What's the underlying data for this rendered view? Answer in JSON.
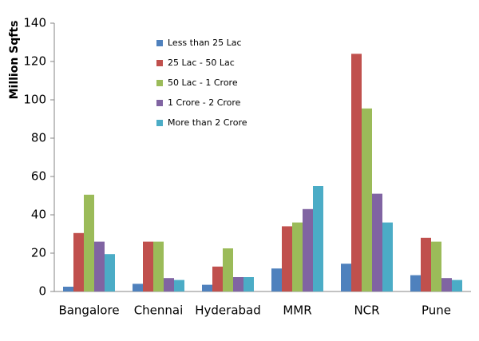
{
  "chart_data": {
    "type": "bar",
    "y_label": "Million Sqfts",
    "categories": [
      "Bangalore",
      "Chennai",
      "Hyderabad",
      "MMR",
      "NCR",
      "Pune"
    ],
    "series": [
      {
        "name": "Less than 25 Lac",
        "color": "#4f81bd",
        "values": [
          2.5,
          4,
          3.5,
          12,
          14.5,
          8.5
        ]
      },
      {
        "name": "25 Lac - 50 Lac",
        "color": "#c0504d",
        "values": [
          30.5,
          26,
          13,
          34,
          124,
          28
        ]
      },
      {
        "name": "50 Lac - 1 Crore",
        "color": "#9bbb59",
        "values": [
          50.5,
          26,
          22.5,
          36,
          95.5,
          26
        ]
      },
      {
        "name": "1 Crore - 2 Crore",
        "color": "#8064a2",
        "values": [
          26,
          7,
          7.5,
          43,
          51,
          7
        ]
      },
      {
        "name": "More than 2 Crore",
        "color": "#4bacc6",
        "values": [
          19.5,
          6,
          7.5,
          55,
          36,
          6
        ]
      }
    ],
    "ylim": [
      0,
      140
    ],
    "yticks": [
      0,
      20,
      40,
      60,
      80,
      100,
      120,
      140
    ],
    "legend": "upper-left"
  }
}
